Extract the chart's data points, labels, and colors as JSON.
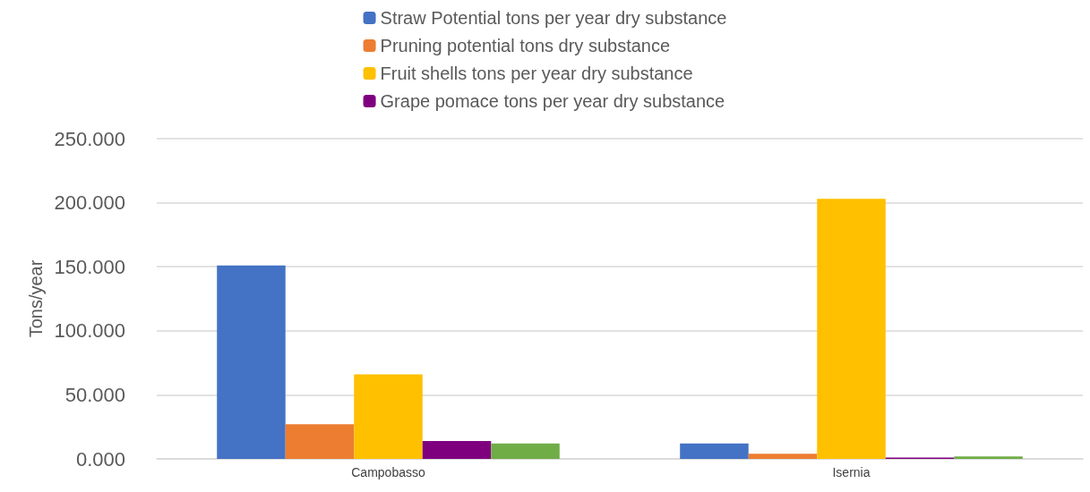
{
  "chart_data": {
    "type": "bar",
    "ylabel": "Tons/year",
    "categories": [
      "Campobasso",
      "Isernia"
    ],
    "series": [
      {
        "name": "Straw Potential tons per year dry substance",
        "color": "#4472c4",
        "values": [
          151,
          12
        ]
      },
      {
        "name": "Pruning potential tons dry substance",
        "color": "#ed7d31",
        "values": [
          27,
          4
        ]
      },
      {
        "name": "Fruit shells tons per year dry substance",
        "color": "#ffc000",
        "values": [
          66,
          203
        ]
      },
      {
        "name": "Grape pomace tons per year dry substance",
        "color": "#7f007f",
        "values": [
          14,
          1
        ]
      },
      {
        "color": "#70ad47",
        "values": [
          12,
          2
        ]
      }
    ],
    "ylim": [
      0,
      250
    ],
    "yticks": [
      {
        "value": 0,
        "label": "0.000"
      },
      {
        "value": 50,
        "label": "50.000"
      },
      {
        "value": 100,
        "label": "100.000"
      },
      {
        "value": 150,
        "label": "150.000"
      },
      {
        "value": 200,
        "label": "200.000"
      },
      {
        "value": 250,
        "label": "250.000"
      }
    ],
    "grid": "y",
    "legend": "top"
  }
}
